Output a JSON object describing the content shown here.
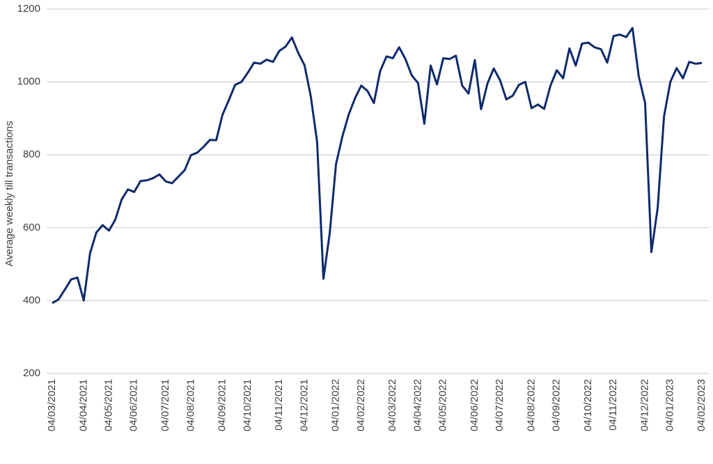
{
  "chart_data": {
    "type": "line",
    "y_label": "Average weekly till transactions",
    "categories": [
      "04/03/2021",
      null,
      null,
      null,
      null,
      "04/04/2021",
      null,
      null,
      null,
      "04/05/2021",
      null,
      null,
      null,
      "04/06/2021",
      null,
      null,
      null,
      null,
      "04/07/2021",
      null,
      null,
      null,
      "04/08/2021",
      null,
      null,
      null,
      null,
      "04/09/2021",
      null,
      null,
      null,
      "04/10/2021",
      null,
      null,
      null,
      null,
      "04/11/2021",
      null,
      null,
      null,
      "04/12/2021",
      null,
      null,
      null,
      null,
      "04/01/2022",
      null,
      null,
      null,
      "04/02/2022",
      null,
      null,
      null,
      null,
      "04/03/2022",
      null,
      null,
      null,
      "04/04/2022",
      null,
      null,
      null,
      "04/05/2022",
      null,
      null,
      null,
      null,
      "04/06/2022",
      null,
      null,
      null,
      "04/07/2022",
      null,
      null,
      null,
      null,
      "04/08/2022",
      null,
      null,
      null,
      "04/09/2022",
      null,
      null,
      null,
      null,
      "04/10/2022",
      null,
      null,
      null,
      "04/11/2022",
      null,
      null,
      null,
      null,
      "04/12/2022",
      null,
      null,
      null,
      "04/01/2023",
      null,
      null,
      null,
      null,
      "04/02/2023"
    ],
    "values": [
      393,
      403,
      430,
      458,
      463,
      400,
      530,
      587,
      607,
      592,
      622,
      677,
      705,
      698,
      728,
      730,
      736,
      746,
      727,
      722,
      740,
      758,
      799,
      806,
      822,
      841,
      840,
      910,
      950,
      992,
      1000,
      1025,
      1053,
      1050,
      1061,
      1055,
      1085,
      1097,
      1122,
      1080,
      1046,
      960,
      835,
      460,
      585,
      775,
      850,
      910,
      955,
      990,
      975,
      942,
      1030,
      1070,
      1065,
      1095,
      1063,
      1018,
      997,
      885,
      1045,
      993,
      1065,
      1063,
      1072,
      990,
      968,
      1060,
      925,
      995,
      1037,
      1005,
      952,
      962,
      992,
      1000,
      928,
      938,
      926,
      990,
      1032,
      1010,
      1092,
      1045,
      1105,
      1108,
      1095,
      1090,
      1053,
      1126,
      1130,
      1123,
      1148,
      1015,
      942,
      533,
      655,
      905,
      1000,
      1038,
      1010,
      1055,
      1050,
      1052
    ],
    "color": "#0f2a6b",
    "ylim": [
      200,
      1200
    ],
    "yticks": [
      200,
      400,
      600,
      800,
      1000,
      1200
    ],
    "grid": true
  }
}
